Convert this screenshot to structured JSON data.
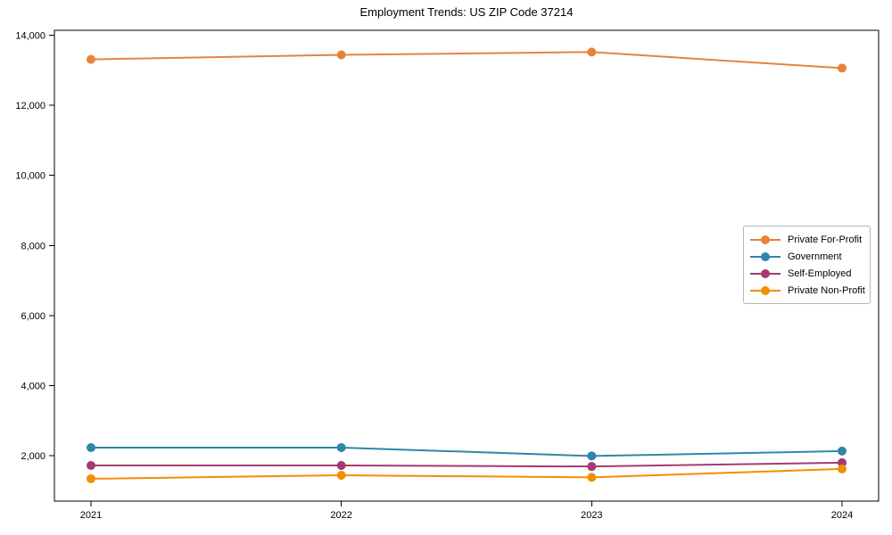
{
  "chart_data": {
    "type": "line",
    "title": "Employment Trends: US ZIP Code 37214",
    "xlabel": "",
    "ylabel": "",
    "x": [
      "2021",
      "2022",
      "2023",
      "2024"
    ],
    "yticks": [
      2000,
      4000,
      6000,
      8000,
      10000,
      12000,
      14000
    ],
    "ytick_labels": [
      "2,000",
      "4,000",
      "6,000",
      "8,000",
      "10,000",
      "12,000",
      "14,000"
    ],
    "ylim": [
      700,
      14150
    ],
    "grid": false,
    "legend_position": "center-right",
    "series": [
      {
        "name": "Private For-Profit",
        "color": "#E8823D",
        "values": [
          13310,
          13440,
          13520,
          13060
        ]
      },
      {
        "name": "Government",
        "color": "#2E86AB",
        "values": [
          2230,
          2230,
          1990,
          2130
        ]
      },
      {
        "name": "Self-Employed",
        "color": "#A23B72",
        "values": [
          1720,
          1720,
          1690,
          1800
        ]
      },
      {
        "name": "Private Non-Profit",
        "color": "#F18F01",
        "values": [
          1340,
          1440,
          1380,
          1620
        ]
      }
    ],
    "axis_color": "#000000"
  }
}
